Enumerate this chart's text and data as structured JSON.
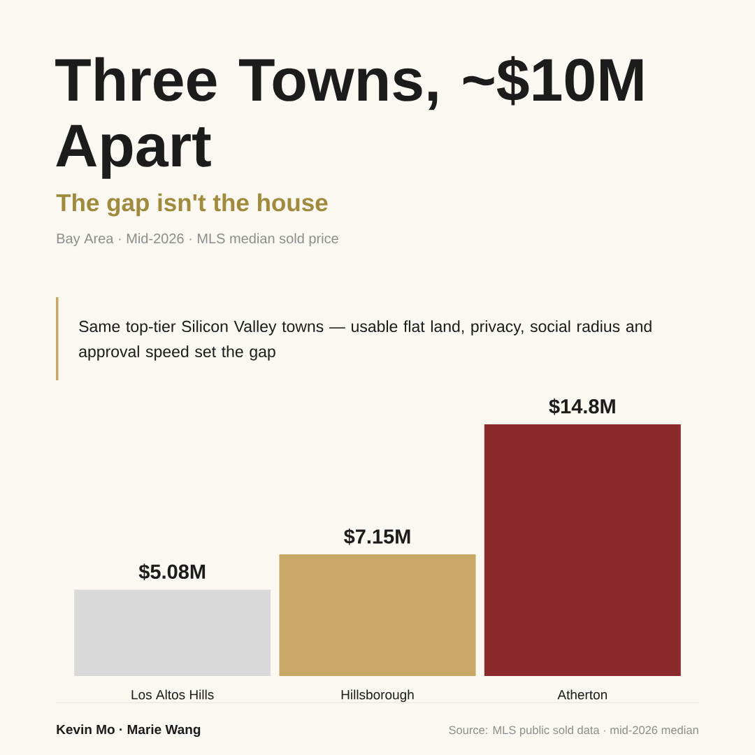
{
  "chart_data": {
    "type": "bar",
    "title": "Three Towns, ~$10M Apart",
    "subtitle": "The gap isn't the house",
    "categories": [
      "Los Altos Hills",
      "Hillsborough",
      "Atherton"
    ],
    "values": [
      5.08,
      7.15,
      14.8
    ],
    "colors": [
      "#d9d9d9",
      "#c9a764",
      "#8b2a2d"
    ],
    "value_labels": [
      "$5.08M",
      "$7.15M",
      "$14.8M"
    ],
    "annotations": [
      "Bay Area · Mid-2026 · MLS median sold price",
      "Same top-tier Silicon Valley towns — usable flat land, privacy, social radius and approval speed set the gap",
      "Kevin Mo · Marie Wang",
      "Source: MLS public sold data · mid-2026 median"
    ]
  }
}
